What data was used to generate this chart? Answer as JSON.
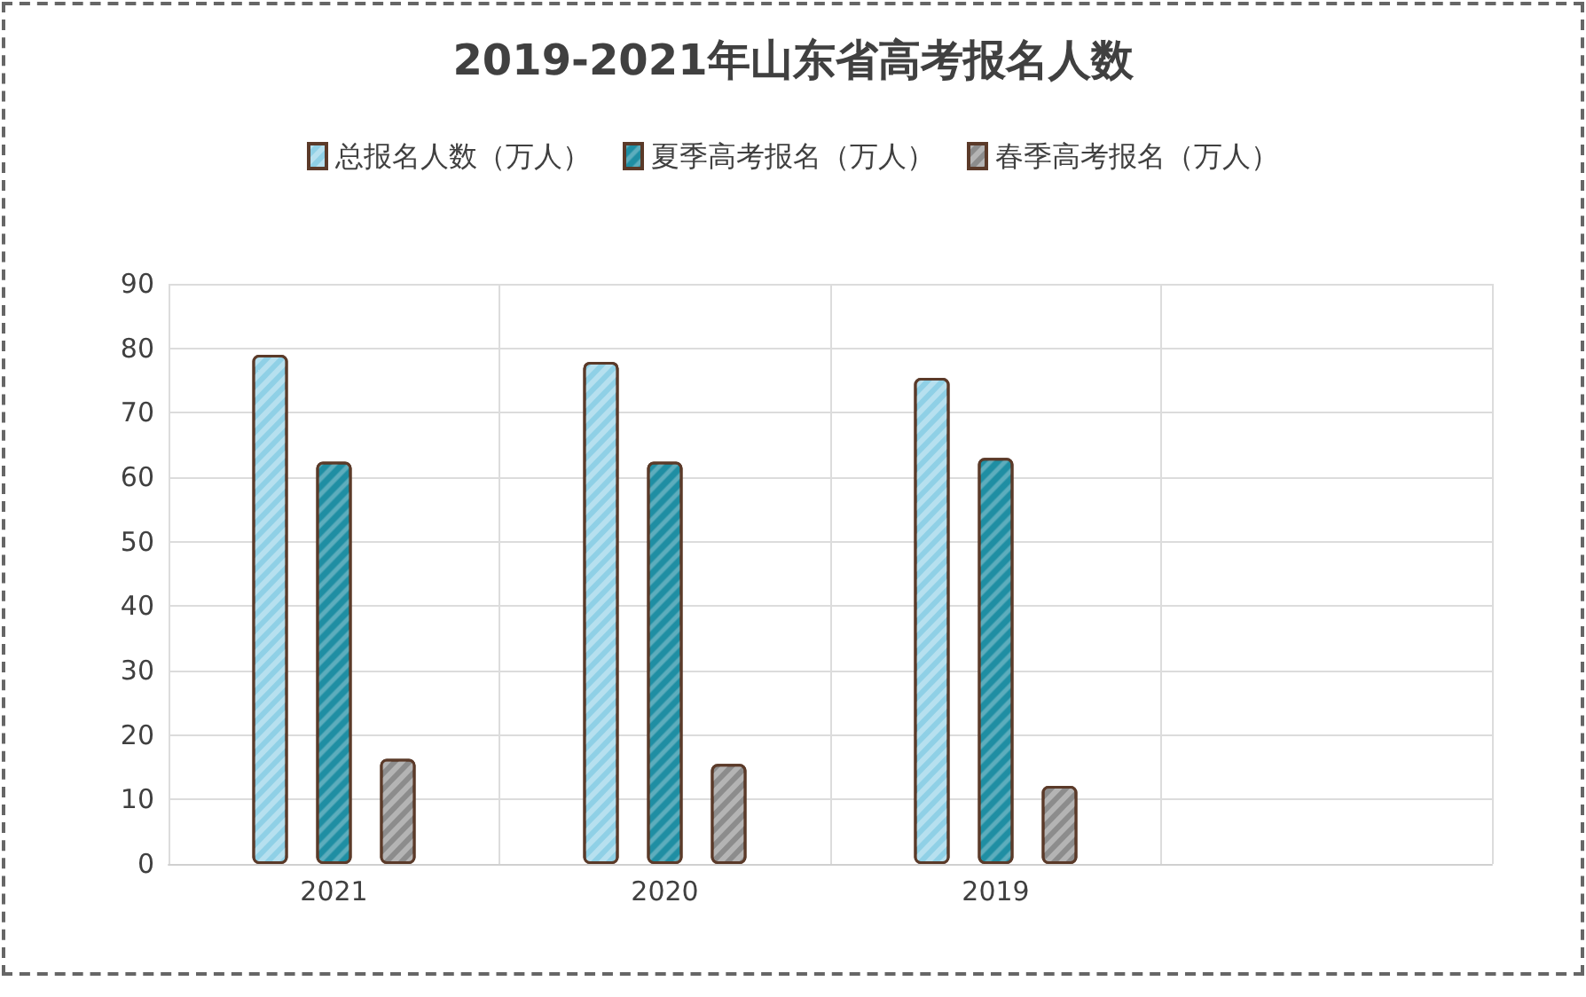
{
  "chart_data": {
    "type": "bar",
    "title": "2019-2021年山东省高考报名人数",
    "categories": [
      "2021",
      "2020",
      "2019",
      null
    ],
    "series": [
      {
        "name": "总报名人数（万人）",
        "color": "#8fd0e6",
        "values": [
          79.0,
          77.9,
          75.4,
          null
        ]
      },
      {
        "name": "夏季高考报名（万人）",
        "color": "#1f8ea3",
        "values": [
          62.4,
          62.4,
          63.0,
          null
        ]
      },
      {
        "name": "春季高考报名（万人）",
        "color": "#8c8c8c",
        "values": [
          16.3,
          15.5,
          12.1,
          null
        ]
      }
    ],
    "ylim": [
      0,
      90
    ],
    "yticks": [
      0,
      10,
      20,
      30,
      40,
      50,
      60,
      70,
      80,
      90
    ],
    "grid": true,
    "legend": "top"
  }
}
